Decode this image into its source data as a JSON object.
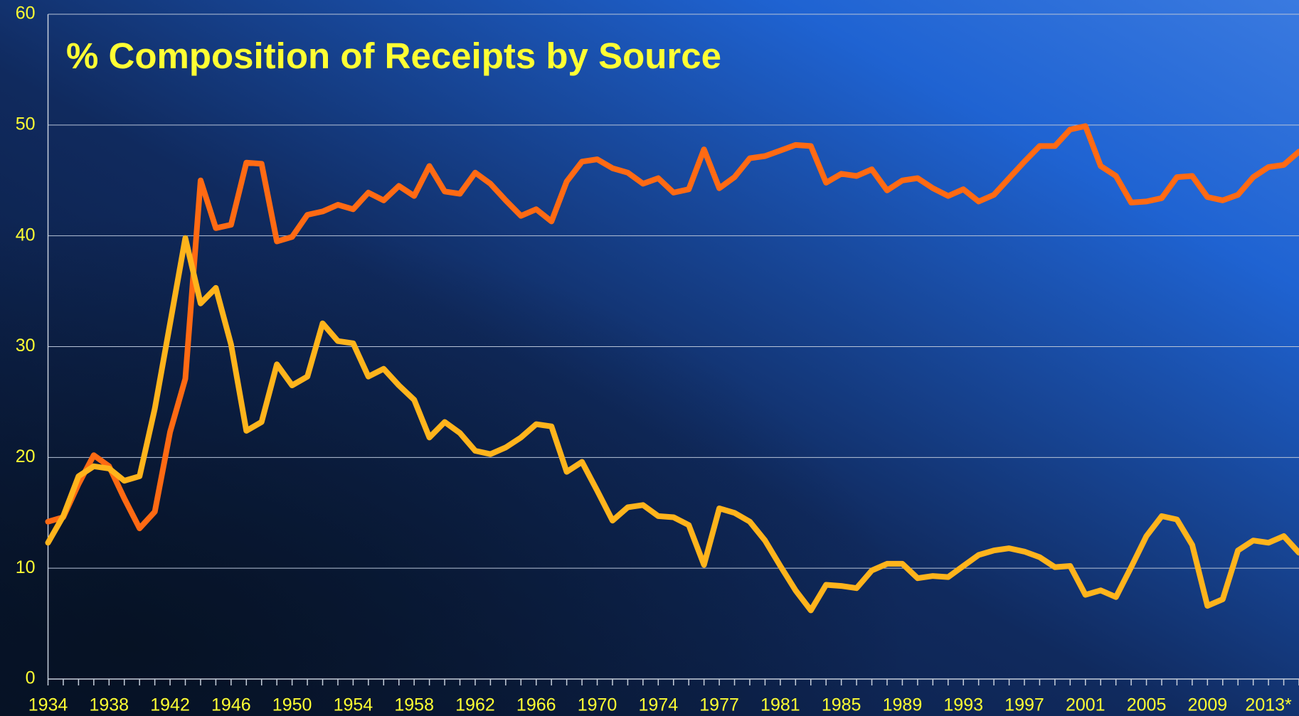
{
  "chart_data": {
    "type": "line",
    "title": "% Composition of Receipts by Source",
    "categories": [
      "1934",
      null,
      null,
      null,
      "1938",
      null,
      null,
      null,
      "1942",
      null,
      null,
      null,
      "1946",
      null,
      null,
      null,
      "1950",
      null,
      null,
      null,
      "1954",
      null,
      null,
      null,
      "1958",
      null,
      null,
      null,
      "1962",
      null,
      null,
      null,
      "1966",
      null,
      null,
      null,
      "1970",
      null,
      null,
      null,
      "1974",
      null,
      null,
      null,
      "1977",
      null,
      null,
      null,
      "1981",
      null,
      null,
      null,
      "1985",
      null,
      null,
      null,
      "1989",
      null,
      null,
      null,
      "1993",
      null,
      null,
      null,
      "1997",
      null,
      null,
      null,
      "2001",
      null,
      null,
      null,
      "2005",
      null,
      null,
      null,
      "2009",
      null,
      null,
      null,
      "2013*",
      null,
      null
    ],
    "series": [
      {
        "color": "#ff6a13",
        "values": [
          14.2,
          14.6,
          17.6,
          20.2,
          19.2,
          16.3,
          13.6,
          15.1,
          22.3,
          27.1,
          45.0,
          40.7,
          41.0,
          46.6,
          46.5,
          39.5,
          39.9,
          41.9,
          42.2,
          42.8,
          42.4,
          43.9,
          43.2,
          44.5,
          43.6,
          46.3,
          44.0,
          43.8,
          45.7,
          44.7,
          43.2,
          41.8,
          42.4,
          41.3,
          44.9,
          46.7,
          46.9,
          46.1,
          45.7,
          44.7,
          45.2,
          43.9,
          44.2,
          47.8,
          44.3,
          45.3,
          47.0,
          47.2,
          47.7,
          48.2,
          48.1,
          44.8,
          45.6,
          45.4,
          46.0,
          44.1,
          45.0,
          45.2,
          44.3,
          43.6,
          44.2,
          43.1,
          43.7,
          45.2,
          46.7,
          48.1,
          48.1,
          49.6,
          49.9,
          46.3,
          45.4,
          43.0,
          43.1,
          43.4,
          45.3,
          45.4,
          43.5,
          43.2,
          43.7,
          45.3,
          46.2,
          46.4,
          47.6
        ]
      },
      {
        "color": "#ffb41c",
        "values": [
          12.3,
          14.7,
          18.3,
          19.2,
          19.0,
          17.9,
          18.3,
          24.4,
          32.1,
          39.8,
          33.9,
          35.3,
          30.2,
          22.4,
          23.2,
          28.4,
          26.5,
          27.3,
          32.1,
          30.5,
          30.3,
          27.3,
          28.0,
          26.5,
          25.2,
          21.8,
          23.2,
          22.2,
          20.6,
          20.3,
          20.9,
          21.8,
          23.0,
          22.8,
          18.7,
          19.6,
          17.0,
          14.3,
          15.5,
          15.7,
          14.7,
          14.6,
          13.9,
          10.3,
          15.4,
          15.0,
          14.2,
          12.5,
          10.2,
          8.0,
          6.2,
          8.5,
          8.4,
          8.2,
          9.8,
          10.4,
          10.4,
          9.1,
          9.3,
          9.2,
          10.2,
          11.2,
          11.6,
          11.8,
          11.5,
          11.0,
          10.1,
          10.2,
          7.6,
          8.0,
          7.4,
          10.1,
          12.9,
          14.7,
          14.4,
          12.1,
          6.6,
          7.2,
          11.6,
          12.5,
          12.3,
          12.9,
          11.4
        ]
      }
    ],
    "ylim": [
      0,
      60
    ],
    "yticks": [
      0,
      10,
      20,
      30,
      40,
      50,
      60
    ],
    "grid": true
  }
}
